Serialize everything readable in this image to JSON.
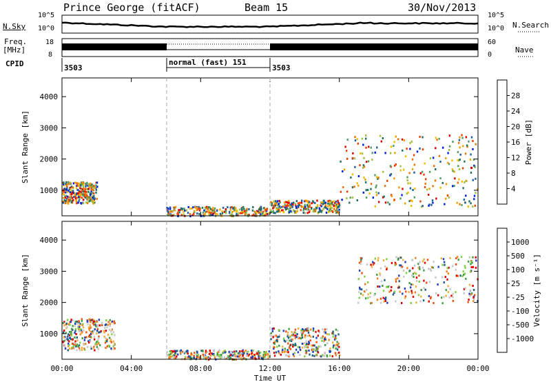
{
  "header": {
    "station": "Prince George (fitACF)",
    "beam": "Beam 15",
    "date": "30/Nov/2013"
  },
  "panels": {
    "sky": {
      "left_label": "N.Sky",
      "right_label": "N.Search",
      "left_ticks": [
        "10^5",
        "10^0"
      ],
      "right_ticks": [
        "10^5",
        "10^0"
      ]
    },
    "freq": {
      "left_label_1": "Freq.",
      "left_label_2": "[MHz]",
      "right_label": "Nave",
      "left_ticks": [
        "18",
        "8"
      ],
      "right_ticks": [
        "60",
        "0"
      ]
    },
    "cpid": {
      "label": "CPID",
      "segments": [
        "3503",
        "normal (fast) 151",
        "3503"
      ]
    }
  },
  "power_panel": {
    "ylabel": "Slant Range [km]",
    "colorbar_label": "Power [dB]",
    "colorbar_ticks": [
      "28",
      "24",
      "20",
      "16",
      "12",
      "8",
      "4"
    ],
    "colorbar_colors": [
      "#e00000",
      "#f04000",
      "#f07000",
      "#f0a000",
      "#f0c000",
      "#a0c040",
      "#50a060",
      "#207060",
      "#2060a0",
      "#0020e0"
    ]
  },
  "velocity_panel": {
    "ylabel": "Slant Range [km]",
    "colorbar_label": "Velocity [m s⁻¹]",
    "colorbar_ticks": [
      "1000",
      "500",
      "100",
      "25",
      "-25",
      "-100",
      "-500",
      "-1000"
    ],
    "colorbar_colors": [
      "#2040c0",
      "#206080",
      "#40a040",
      "#80d040",
      "#c8c8c8",
      "#c8c8c8",
      "#f0b040",
      "#f08020",
      "#f05010",
      "#e00000"
    ]
  },
  "xaxis": {
    "label": "Time UT",
    "ticks": [
      "00:00",
      "04:00",
      "08:00",
      "12:00",
      "16:00",
      "20:00",
      "00:00"
    ]
  },
  "chart_data": [
    {
      "type": "heatmap",
      "title": "Prince George (fitACF) Beam 15 30/Nov/2013",
      "variable": "Power [dB]",
      "xlabel": "Time UT",
      "ylabel": "Slant Range [km]",
      "x_range_hours": [
        0,
        24
      ],
      "ylim": [
        180,
        4600
      ],
      "yticks": [
        1000,
        2000,
        3000,
        4000
      ],
      "colorbar_range": [
        0,
        30
      ],
      "features": [
        {
          "t_start": 0.0,
          "t_end": 2.0,
          "range_km": [
            600,
            1300
          ],
          "power_db": 18
        },
        {
          "t_start": 6.0,
          "t_end": 12.0,
          "range_km": [
            200,
            500
          ],
          "power_db": 6
        },
        {
          "t_start": 12.0,
          "t_end": 16.0,
          "range_km": [
            300,
            700
          ],
          "power_db": 28
        },
        {
          "t_start": 16.0,
          "t_end": 24.0,
          "range_km": [
            500,
            2800
          ],
          "power_db": 12
        }
      ]
    },
    {
      "type": "heatmap",
      "variable": "Velocity [m s-1]",
      "xlabel": "Time UT",
      "ylabel": "Slant Range [km]",
      "x_range_hours": [
        0,
        24
      ],
      "ylim": [
        180,
        4600
      ],
      "yticks": [
        1000,
        2000,
        3000,
        4000
      ],
      "features": [
        {
          "t_start": 0.0,
          "t_end": 3.0,
          "range_km": [
            500,
            1500
          ],
          "velocity": 0
        },
        {
          "t_start": 6.0,
          "t_end": 12.0,
          "range_km": [
            200,
            500
          ],
          "velocity": -300
        },
        {
          "t_start": 12.0,
          "t_end": 16.0,
          "range_km": [
            300,
            1200
          ],
          "velocity": -200
        },
        {
          "t_start": 17.0,
          "t_end": 24.0,
          "range_km": [
            2000,
            3500
          ],
          "velocity": -300
        }
      ]
    }
  ]
}
